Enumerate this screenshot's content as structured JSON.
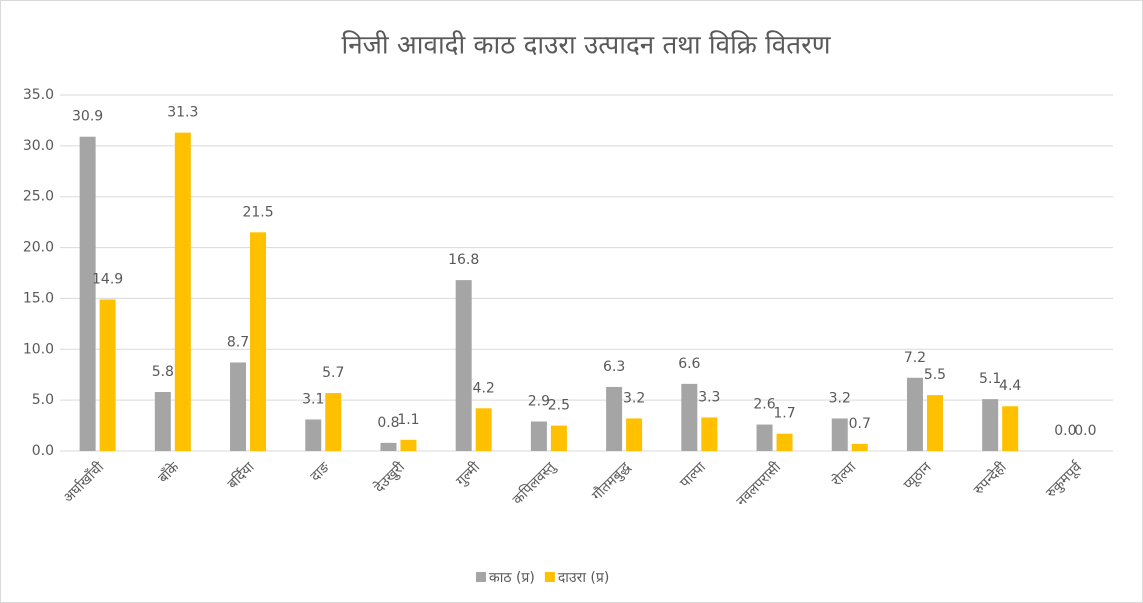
{
  "chart_data": {
    "type": "bar",
    "title": "निजी आवादी काठ दाउरा उत्पादन तथा विक्रि वितरण",
    "categories": [
      "अर्घाखाँची",
      "बाँके",
      "बर्दिया",
      "दाङ",
      "देउखुरी",
      "गुल्मी",
      "कपिलवस्तु",
      "गौतमबुद्ध",
      "पाल्पा",
      "नवलपरासी",
      "रोल्पा",
      "प्यूठान",
      "रुपन्देही",
      "रुकुमपूर्व"
    ],
    "series": [
      {
        "name": "काठ (प्र)",
        "color": "#a5a5a5",
        "values": [
          30.9,
          5.8,
          8.7,
          3.1,
          0.8,
          16.8,
          2.9,
          6.3,
          6.6,
          2.6,
          3.2,
          7.2,
          5.1,
          0
        ],
        "value_labels": [
          "30.9",
          "5.8",
          "8.7",
          "3.1",
          "0.8",
          "16.8",
          "2.9",
          "6.3",
          "6.6",
          "2.6",
          "3.2",
          "7.2",
          "5.1",
          "0.0"
        ]
      },
      {
        "name": "दाउरा (प्र)",
        "color": "#ffc000",
        "values": [
          14.9,
          31.3,
          21.5,
          5.7,
          1.1,
          4.2,
          2.5,
          3.2,
          3.3,
          1.7,
          0.7,
          5.5,
          4.4,
          0
        ],
        "value_labels": [
          "14.9",
          "31.3",
          "21.5",
          "5.7",
          "1.1",
          "4.2",
          "2.5",
          "3.2",
          "3.3",
          "1.7",
          "0.7",
          "5.5",
          "4.4",
          "0.0"
        ]
      }
    ],
    "ylim": [
      0,
      35
    ],
    "yticks": [
      {
        "value": 0,
        "label": "0.0"
      },
      {
        "value": 5,
        "label": "5.0"
      },
      {
        "value": 10,
        "label": "10.0"
      },
      {
        "value": 15,
        "label": "15.0"
      },
      {
        "value": 20,
        "label": "20.0"
      },
      {
        "value": 25,
        "label": "25.0"
      },
      {
        "value": 30,
        "label": "30.0"
      },
      {
        "value": 35,
        "label": "35.0"
      }
    ],
    "grid": true,
    "legend": "bottom"
  }
}
